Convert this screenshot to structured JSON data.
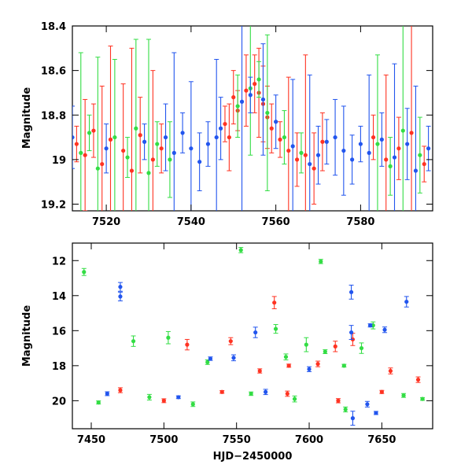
{
  "chart_data": [
    {
      "id": "top",
      "type": "scatter",
      "title": "",
      "xlabel": "",
      "ylabel": "Magnitude",
      "xlim": [
        7512,
        7597
      ],
      "ylim": [
        19.23,
        18.4
      ],
      "y_inverted": true,
      "xticks": [
        7520,
        7540,
        7560,
        7580
      ],
      "yticks": [
        18.4,
        18.6,
        18.8,
        19,
        19.2
      ],
      "grid": false,
      "series": [
        {
          "color": "#ff3322",
          "points": [
            [
              7513,
              18.93
            ],
            [
              7515,
              18.98
            ],
            [
              7517,
              18.87
            ],
            [
              7519,
              19.02
            ],
            [
              7521,
              18.91
            ],
            [
              7524,
              18.96
            ],
            [
              7526,
              19.05
            ],
            [
              7528,
              18.89
            ],
            [
              7531,
              19.0
            ],
            [
              7533,
              18.95
            ],
            [
              7548,
              18.84
            ],
            [
              7549,
              18.9
            ],
            [
              7550,
              18.72
            ],
            [
              7551,
              18.78
            ],
            [
              7553,
              18.69
            ],
            [
              7555,
              18.66
            ],
            [
              7556,
              18.7
            ],
            [
              7557,
              18.75
            ],
            [
              7558,
              18.81
            ],
            [
              7559,
              18.86
            ],
            [
              7561,
              18.91
            ],
            [
              7563,
              18.96
            ],
            [
              7565,
              19.0
            ],
            [
              7567,
              18.98
            ],
            [
              7569,
              19.04
            ],
            [
              7571,
              18.92
            ],
            [
              7583,
              18.9
            ],
            [
              7586,
              19.0
            ],
            [
              7589,
              18.95
            ],
            [
              7592,
              18.88
            ],
            [
              7595,
              19.02
            ]
          ],
          "errors": [
            [
              7515,
              0.25
            ],
            [
              7519,
              0.35
            ],
            [
              7521,
              0.42
            ],
            [
              7524,
              0.3
            ],
            [
              7526,
              0.55
            ],
            [
              7531,
              0.4
            ],
            [
              7556,
              0.2
            ],
            [
              7560,
              0.28
            ],
            [
              7563,
              0.33
            ],
            [
              7567,
              0.45
            ],
            [
              7586,
              0.38
            ],
            [
              7592,
              0.5
            ]
          ]
        },
        {
          "color": "#33dd44",
          "points": [
            [
              7514,
              18.97
            ],
            [
              7516,
              18.88
            ],
            [
              7518,
              19.04
            ],
            [
              7522,
              18.9
            ],
            [
              7525,
              18.99
            ],
            [
              7527,
              18.86
            ],
            [
              7530,
              19.06
            ],
            [
              7532,
              18.93
            ],
            [
              7535,
              19.0
            ],
            [
              7551,
              18.76
            ],
            [
              7554,
              18.68
            ],
            [
              7556,
              18.64
            ],
            [
              7558,
              18.79
            ],
            [
              7562,
              18.9
            ],
            [
              7566,
              18.97
            ],
            [
              7584,
              18.93
            ],
            [
              7587,
              19.03
            ],
            [
              7590,
              18.87
            ],
            [
              7594,
              18.98
            ]
          ],
          "errors": [
            [
              7514,
              0.45
            ],
            [
              7518,
              0.5
            ],
            [
              7522,
              0.35
            ],
            [
              7527,
              0.4
            ],
            [
              7530,
              0.6
            ],
            [
              7554,
              0.3
            ],
            [
              7558,
              0.35
            ],
            [
              7584,
              0.4
            ],
            [
              7590,
              0.55
            ]
          ]
        },
        {
          "color": "#2255ee",
          "points": [
            [
              7512,
              18.9
            ],
            [
              7520,
              18.95
            ],
            [
              7529,
              18.92
            ],
            [
              7534,
              18.9
            ],
            [
              7536,
              18.97
            ],
            [
              7538,
              18.88
            ],
            [
              7540,
              18.95
            ],
            [
              7542,
              19.01
            ],
            [
              7544,
              18.93
            ],
            [
              7546,
              18.9
            ],
            [
              7547,
              18.86
            ],
            [
              7552,
              18.74
            ],
            [
              7554,
              18.71
            ],
            [
              7557,
              18.73
            ],
            [
              7560,
              18.83
            ],
            [
              7564,
              18.94
            ],
            [
              7568,
              19.02
            ],
            [
              7570,
              18.98
            ],
            [
              7572,
              18.92
            ],
            [
              7574,
              18.9
            ],
            [
              7576,
              18.96
            ],
            [
              7578,
              19.0
            ],
            [
              7580,
              18.93
            ],
            [
              7582,
              18.97
            ],
            [
              7585,
              18.91
            ],
            [
              7588,
              18.99
            ],
            [
              7591,
              18.93
            ],
            [
              7593,
              19.05
            ],
            [
              7596,
              18.95
            ]
          ],
          "errors": [
            [
              7536,
              0.45
            ],
            [
              7540,
              0.3
            ],
            [
              7546,
              0.35
            ],
            [
              7552,
              0.5
            ],
            [
              7557,
              0.25
            ],
            [
              7564,
              0.3
            ],
            [
              7568,
              0.4
            ],
            [
              7576,
              0.2
            ],
            [
              7582,
              0.35
            ],
            [
              7588,
              0.42
            ],
            [
              7593,
              0.38
            ]
          ]
        }
      ]
    },
    {
      "id": "bottom",
      "type": "scatter",
      "title": "",
      "xlabel": "HJD−2450000",
      "ylabel": "Magnitude",
      "xlim": [
        7437,
        7685
      ],
      "ylim": [
        21.6,
        11.0
      ],
      "y_inverted": true,
      "xticks": [
        7450,
        7500,
        7550,
        7600,
        7650
      ],
      "yticks": [
        12,
        14,
        16,
        18,
        20
      ],
      "grid": false,
      "series": [
        {
          "color": "#33dd44",
          "points": [
            [
              7445,
              12.65
            ],
            [
              7553,
              11.4
            ],
            [
              7608,
              12.05
            ],
            [
              7479,
              16.6
            ],
            [
              7503,
              16.4
            ],
            [
              7530,
              17.8
            ],
            [
              7577,
              15.9
            ],
            [
              7584,
              17.5
            ],
            [
              7598,
              16.8
            ],
            [
              7611,
              17.2
            ],
            [
              7624,
              18.0
            ],
            [
              7636,
              17.0
            ],
            [
              7644,
              15.7
            ],
            [
              7455,
              20.1
            ],
            [
              7490,
              19.8
            ],
            [
              7520,
              20.2
            ],
            [
              7560,
              19.6
            ],
            [
              7590,
              19.9
            ],
            [
              7625,
              20.5
            ],
            [
              7665,
              19.7
            ],
            [
              7678,
              19.9
            ]
          ],
          "errors": [
            [
              7445,
              0.2
            ],
            [
              7479,
              0.3
            ],
            [
              7503,
              0.35
            ],
            [
              7577,
              0.25
            ],
            [
              7598,
              0.4
            ],
            [
              7636,
              0.3
            ],
            [
              7644,
              0.2
            ]
          ]
        },
        {
          "color": "#ff3322",
          "points": [
            [
              7576,
              14.4
            ],
            [
              7516,
              16.8
            ],
            [
              7546,
              16.6
            ],
            [
              7566,
              18.3
            ],
            [
              7586,
              18.0
            ],
            [
              7606,
              17.9
            ],
            [
              7618,
              16.9
            ],
            [
              7630,
              16.5
            ],
            [
              7656,
              18.3
            ],
            [
              7470,
              19.4
            ],
            [
              7500,
              20.0
            ],
            [
              7540,
              19.5
            ],
            [
              7585,
              19.6
            ],
            [
              7620,
              20.0
            ],
            [
              7650,
              19.5
            ],
            [
              7675,
              18.8
            ]
          ],
          "errors": [
            [
              7576,
              0.35
            ],
            [
              7516,
              0.3
            ],
            [
              7546,
              0.2
            ],
            [
              7618,
              0.3
            ],
            [
              7630,
              0.35
            ]
          ]
        },
        {
          "color": "#2255ee",
          "points": [
            [
              7470,
              13.5
            ],
            [
              7470,
              14.05
            ],
            [
              7563,
              16.1
            ],
            [
              7629,
              13.8
            ],
            [
              7629,
              16.1
            ],
            [
              7642,
              15.7
            ],
            [
              7652,
              15.95
            ],
            [
              7667,
              14.35
            ],
            [
              7532,
              17.6
            ],
            [
              7548,
              17.55
            ],
            [
              7600,
              18.2
            ],
            [
              7461,
              19.6
            ],
            [
              7510,
              19.8
            ],
            [
              7570,
              19.5
            ],
            [
              7630,
              21.0
            ],
            [
              7646,
              20.7
            ],
            [
              7640,
              20.2
            ]
          ],
          "errors": [
            [
              7470,
              0.25
            ],
            [
              7563,
              0.3
            ],
            [
              7629,
              0.4
            ],
            [
              7667,
              0.3
            ],
            [
              7630,
              0.4
            ]
          ]
        }
      ]
    }
  ]
}
